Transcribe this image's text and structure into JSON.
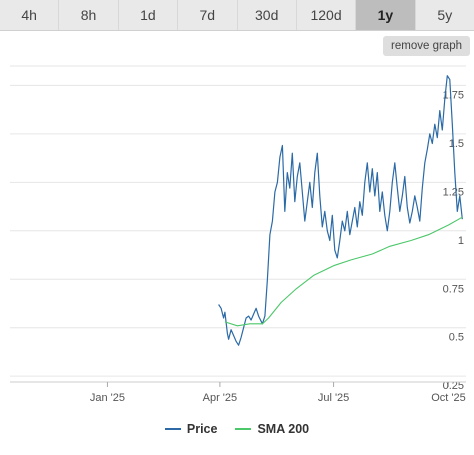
{
  "tabs": [
    {
      "label": "4h",
      "active": false
    },
    {
      "label": "8h",
      "active": false
    },
    {
      "label": "1d",
      "active": false
    },
    {
      "label": "7d",
      "active": false
    },
    {
      "label": "30d",
      "active": false
    },
    {
      "label": "120d",
      "active": false
    },
    {
      "label": "1y",
      "active": true
    },
    {
      "label": "5y",
      "active": false
    }
  ],
  "remove_graph_label": "remove graph",
  "legend": [
    {
      "label": "Price",
      "color": "#2b6aa6"
    },
    {
      "label": "SMA 200",
      "color": "#4cc76a"
    }
  ],
  "chart_data": {
    "type": "line",
    "title": "",
    "xlabel": "",
    "ylabel": "",
    "x_ticks": [
      "Jan '25",
      "Apr '25",
      "Jul '25",
      "Oct '25"
    ],
    "y_ticks": [
      0.25,
      0.5,
      0.75,
      1,
      1.25,
      1.5,
      1.75
    ],
    "ylim": [
      0.22,
      1.85
    ],
    "xlim": [
      "2024-10-15",
      "2025-10-15"
    ],
    "grid": true,
    "legend_position": "bottom",
    "series": [
      {
        "name": "Price",
        "color": "#2b6aa6",
        "points": [
          [
            "2025-03-31",
            0.62
          ],
          [
            "2025-04-02",
            0.6
          ],
          [
            "2025-04-04",
            0.55
          ],
          [
            "2025-04-05",
            0.58
          ],
          [
            "2025-04-07",
            0.47
          ],
          [
            "2025-04-08",
            0.44
          ],
          [
            "2025-04-10",
            0.49
          ],
          [
            "2025-04-12",
            0.46
          ],
          [
            "2025-04-14",
            0.43
          ],
          [
            "2025-04-16",
            0.41
          ],
          [
            "2025-04-18",
            0.45
          ],
          [
            "2025-04-20",
            0.5
          ],
          [
            "2025-04-22",
            0.55
          ],
          [
            "2025-04-24",
            0.56
          ],
          [
            "2025-04-26",
            0.54
          ],
          [
            "2025-04-28",
            0.57
          ],
          [
            "2025-04-30",
            0.6
          ],
          [
            "2025-05-02",
            0.56
          ],
          [
            "2025-05-05",
            0.52
          ],
          [
            "2025-05-07",
            0.56
          ],
          [
            "2025-05-09",
            0.75
          ],
          [
            "2025-05-11",
            0.98
          ],
          [
            "2025-05-13",
            1.05
          ],
          [
            "2025-05-15",
            1.2
          ],
          [
            "2025-05-17",
            1.25
          ],
          [
            "2025-05-19",
            1.38
          ],
          [
            "2025-05-21",
            1.44
          ],
          [
            "2025-05-23",
            1.1
          ],
          [
            "2025-05-25",
            1.3
          ],
          [
            "2025-05-27",
            1.22
          ],
          [
            "2025-05-29",
            1.4
          ],
          [
            "2025-05-31",
            1.15
          ],
          [
            "2025-06-02",
            1.28
          ],
          [
            "2025-06-04",
            1.35
          ],
          [
            "2025-06-06",
            1.2
          ],
          [
            "2025-06-08",
            1.05
          ],
          [
            "2025-06-10",
            1.15
          ],
          [
            "2025-06-12",
            1.25
          ],
          [
            "2025-06-14",
            1.12
          ],
          [
            "2025-06-16",
            1.3
          ],
          [
            "2025-06-18",
            1.4
          ],
          [
            "2025-06-20",
            1.18
          ],
          [
            "2025-06-22",
            1.02
          ],
          [
            "2025-06-24",
            1.1
          ],
          [
            "2025-06-26",
            1.0
          ],
          [
            "2025-06-28",
            0.95
          ],
          [
            "2025-06-30",
            1.08
          ],
          [
            "2025-07-02",
            0.9
          ],
          [
            "2025-07-04",
            0.86
          ],
          [
            "2025-07-06",
            0.95
          ],
          [
            "2025-07-08",
            1.05
          ],
          [
            "2025-07-10",
            1.0
          ],
          [
            "2025-07-12",
            1.1
          ],
          [
            "2025-07-14",
            0.98
          ],
          [
            "2025-07-16",
            1.05
          ],
          [
            "2025-07-18",
            1.12
          ],
          [
            "2025-07-20",
            1.02
          ],
          [
            "2025-07-22",
            1.15
          ],
          [
            "2025-07-24",
            1.08
          ],
          [
            "2025-07-26",
            1.25
          ],
          [
            "2025-07-28",
            1.35
          ],
          [
            "2025-07-30",
            1.2
          ],
          [
            "2025-08-01",
            1.32
          ],
          [
            "2025-08-03",
            1.18
          ],
          [
            "2025-08-05",
            1.3
          ],
          [
            "2025-08-07",
            1.1
          ],
          [
            "2025-08-09",
            1.2
          ],
          [
            "2025-08-11",
            1.08
          ],
          [
            "2025-08-13",
            1.0
          ],
          [
            "2025-08-15",
            1.1
          ],
          [
            "2025-08-17",
            1.25
          ],
          [
            "2025-08-19",
            1.35
          ],
          [
            "2025-08-21",
            1.22
          ],
          [
            "2025-08-23",
            1.1
          ],
          [
            "2025-08-25",
            1.18
          ],
          [
            "2025-08-27",
            1.28
          ],
          [
            "2025-08-29",
            1.12
          ],
          [
            "2025-08-31",
            1.04
          ],
          [
            "2025-09-02",
            1.1
          ],
          [
            "2025-09-04",
            1.18
          ],
          [
            "2025-09-06",
            1.12
          ],
          [
            "2025-09-08",
            1.05
          ],
          [
            "2025-09-10",
            1.22
          ],
          [
            "2025-09-12",
            1.35
          ],
          [
            "2025-09-14",
            1.42
          ],
          [
            "2025-09-16",
            1.5
          ],
          [
            "2025-09-18",
            1.45
          ],
          [
            "2025-09-20",
            1.55
          ],
          [
            "2025-09-22",
            1.48
          ],
          [
            "2025-09-24",
            1.62
          ],
          [
            "2025-09-26",
            1.52
          ],
          [
            "2025-09-28",
            1.68
          ],
          [
            "2025-09-30",
            1.8
          ],
          [
            "2025-10-02",
            1.78
          ],
          [
            "2025-10-04",
            1.55
          ],
          [
            "2025-10-06",
            1.3
          ],
          [
            "2025-10-08",
            1.1
          ],
          [
            "2025-10-10",
            1.18
          ],
          [
            "2025-10-12",
            1.06
          ]
        ]
      },
      {
        "name": "SMA 200",
        "color": "#4cc76a",
        "points": [
          [
            "2025-04-05",
            0.53
          ],
          [
            "2025-04-15",
            0.51
          ],
          [
            "2025-04-25",
            0.52
          ],
          [
            "2025-05-05",
            0.52
          ],
          [
            "2025-05-10",
            0.55
          ],
          [
            "2025-05-20",
            0.63
          ],
          [
            "2025-06-01",
            0.7
          ],
          [
            "2025-06-15",
            0.77
          ],
          [
            "2025-07-01",
            0.82
          ],
          [
            "2025-07-15",
            0.85
          ],
          [
            "2025-08-01",
            0.88
          ],
          [
            "2025-08-15",
            0.92
          ],
          [
            "2025-09-01",
            0.95
          ],
          [
            "2025-09-15",
            0.98
          ],
          [
            "2025-10-01",
            1.03
          ],
          [
            "2025-10-12",
            1.07
          ]
        ]
      }
    ]
  }
}
